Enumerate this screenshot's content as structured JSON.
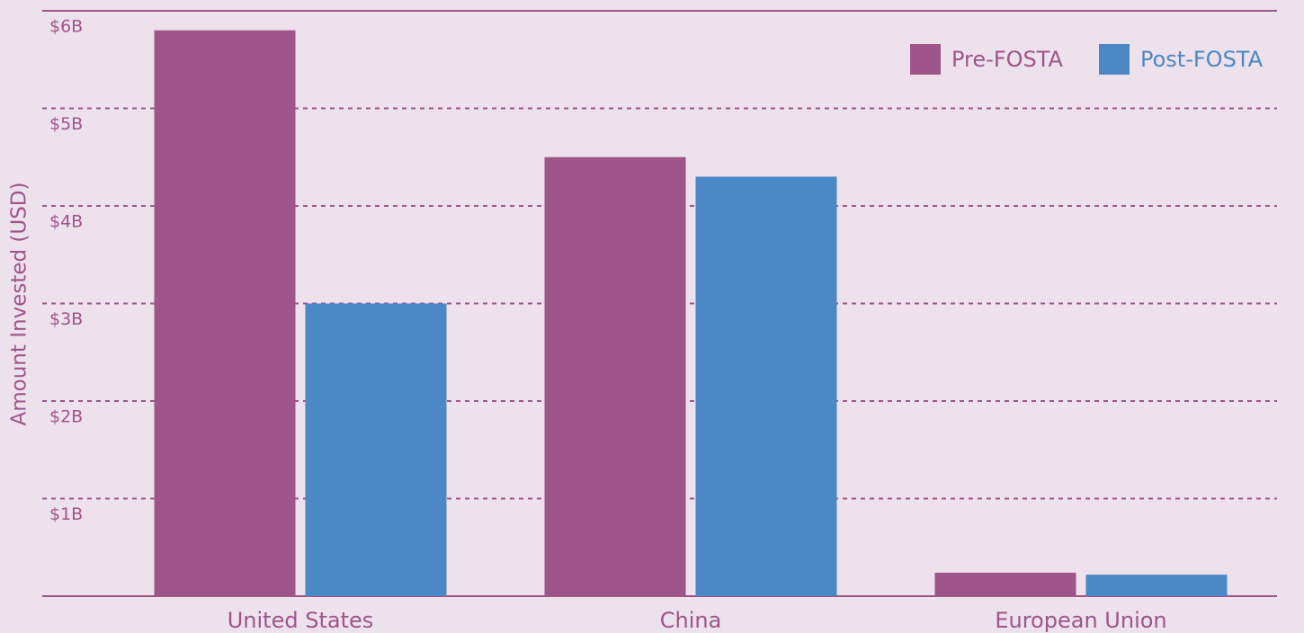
{
  "chart_data": {
    "type": "bar",
    "y_label": "Amount Invested (USD)",
    "categories": [
      "United States",
      "China",
      "European Union"
    ],
    "series": [
      {
        "name": "Pre-FOSTA",
        "color": "#9e5589",
        "values": [
          5800000000,
          4500000000,
          240000000
        ]
      },
      {
        "name": "Post-FOSTA",
        "color": "#4c87c6",
        "values": [
          3000000000,
          4300000000,
          220000000
        ]
      }
    ],
    "ylim": [
      0,
      6000000000
    ],
    "yticks": [
      {
        "value": 1000000000,
        "label": "$1B"
      },
      {
        "value": 2000000000,
        "label": "$2B"
      },
      {
        "value": 3000000000,
        "label": "$3B"
      },
      {
        "value": 4000000000,
        "label": "$4B"
      },
      {
        "value": 5000000000,
        "label": "$5B"
      },
      {
        "value": 6000000000,
        "label": "$6B"
      }
    ],
    "grid": true,
    "legend": "upper right"
  }
}
